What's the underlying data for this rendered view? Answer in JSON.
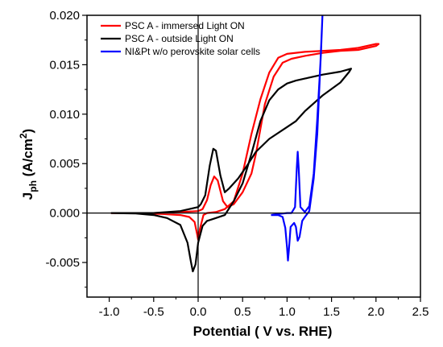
{
  "chart_data": {
    "type": "line",
    "xlabel": "Potential ( V vs. RHE)",
    "ylabel_main": "J",
    "ylabel_sub": "ph",
    "ylabel_unit_open": " (A/cm",
    "ylabel_unit_sup": "2",
    "ylabel_unit_close": ")",
    "xlim": [
      -1.25,
      2.5
    ],
    "ylim": [
      -0.0085,
      0.02
    ],
    "x_ticks": [
      -1.0,
      -0.5,
      0.0,
      0.5,
      1.0,
      1.5,
      2.0,
      2.5
    ],
    "x_tick_labels": [
      "-1.0",
      "-0.5",
      "0.0",
      "0.5",
      "1.0",
      "1.5",
      "2.0",
      "2.5"
    ],
    "y_ticks": [
      -0.005,
      0.0,
      0.005,
      0.01,
      0.015,
      0.02
    ],
    "y_tick_labels": [
      "-0.005",
      "0.000",
      "0.005",
      "0.010",
      "0.015",
      "0.020"
    ],
    "grid": false,
    "legend_position": "top-left",
    "zero_lines": true,
    "series": [
      {
        "name": "PSC A - immersed Light ON",
        "color": "#ff0000",
        "points": [
          [
            -0.98,
            0.0
          ],
          [
            -0.8,
            0.0
          ],
          [
            -0.6,
            -5e-05
          ],
          [
            -0.4,
            -0.0001
          ],
          [
            -0.2,
            -0.0002
          ],
          [
            -0.1,
            -0.0004
          ],
          [
            -0.04,
            -0.0009
          ],
          [
            -0.01,
            -0.0022
          ],
          [
            0.0,
            -0.0027
          ],
          [
            0.02,
            -0.0016
          ],
          [
            0.06,
            -0.0002
          ],
          [
            0.1,
            0.0
          ],
          [
            0.2,
            0.0001
          ],
          [
            0.3,
            0.0004
          ],
          [
            0.4,
            0.0012
          ],
          [
            0.5,
            0.004
          ],
          [
            0.6,
            0.008
          ],
          [
            0.7,
            0.0115
          ],
          [
            0.8,
            0.0142
          ],
          [
            0.9,
            0.0157
          ],
          [
            1.0,
            0.0161
          ],
          [
            1.2,
            0.0163
          ],
          [
            1.4,
            0.0164
          ],
          [
            1.6,
            0.0165
          ],
          [
            1.8,
            0.0167
          ],
          [
            2.0,
            0.0171
          ],
          [
            2.03,
            0.0171
          ],
          [
            2.0,
            0.0169
          ],
          [
            1.8,
            0.0165
          ],
          [
            1.6,
            0.0164
          ],
          [
            1.4,
            0.0162
          ],
          [
            1.2,
            0.0159
          ],
          [
            1.05,
            0.0156
          ],
          [
            0.95,
            0.0152
          ],
          [
            0.85,
            0.0138
          ],
          [
            0.75,
            0.011
          ],
          [
            0.7,
            0.0085
          ],
          [
            0.65,
            0.006
          ],
          [
            0.6,
            0.004
          ],
          [
            0.5,
            0.0021
          ],
          [
            0.4,
            0.0009
          ],
          [
            0.33,
            0.0006
          ],
          [
            0.28,
            0.0012
          ],
          [
            0.22,
            0.0033
          ],
          [
            0.18,
            0.0037
          ],
          [
            0.14,
            0.0028
          ],
          [
            0.1,
            0.0013
          ],
          [
            0.05,
            0.0004
          ],
          [
            0.0,
            0.0002
          ],
          [
            -0.2,
            0.0001
          ],
          [
            -0.5,
            0.0
          ],
          [
            -0.98,
            0.0
          ]
        ]
      },
      {
        "name": "PSC A - outside Light ON",
        "color": "#000000",
        "points": [
          [
            -0.98,
            0.0
          ],
          [
            -0.7,
            -5e-05
          ],
          [
            -0.5,
            -0.0002
          ],
          [
            -0.35,
            -0.0005
          ],
          [
            -0.2,
            -0.0012
          ],
          [
            -0.12,
            -0.003
          ],
          [
            -0.08,
            -0.005
          ],
          [
            -0.06,
            -0.0059
          ],
          [
            -0.03,
            -0.0052
          ],
          [
            0.0,
            -0.003
          ],
          [
            0.05,
            -0.0013
          ],
          [
            0.1,
            -0.0008
          ],
          [
            0.2,
            -0.0005
          ],
          [
            0.3,
            -0.0002
          ],
          [
            0.4,
            0.0012
          ],
          [
            0.5,
            0.003
          ],
          [
            0.6,
            0.006
          ],
          [
            0.7,
            0.0093
          ],
          [
            0.8,
            0.0114
          ],
          [
            0.9,
            0.0125
          ],
          [
            1.0,
            0.0131
          ],
          [
            1.1,
            0.0134
          ],
          [
            1.2,
            0.0136
          ],
          [
            1.4,
            0.014
          ],
          [
            1.6,
            0.0143
          ],
          [
            1.72,
            0.0146
          ],
          [
            1.7,
            0.0143
          ],
          [
            1.6,
            0.0132
          ],
          [
            1.4,
            0.0119
          ],
          [
            1.2,
            0.0103
          ],
          [
            1.1,
            0.0093
          ],
          [
            1.0,
            0.0087
          ],
          [
            0.8,
            0.0075
          ],
          [
            0.65,
            0.0062
          ],
          [
            0.55,
            0.0048
          ],
          [
            0.45,
            0.0035
          ],
          [
            0.35,
            0.0025
          ],
          [
            0.3,
            0.0021
          ],
          [
            0.25,
            0.0038
          ],
          [
            0.2,
            0.0063
          ],
          [
            0.17,
            0.0065
          ],
          [
            0.13,
            0.0048
          ],
          [
            0.08,
            0.0018
          ],
          [
            0.03,
            0.0009
          ],
          [
            0.0,
            0.0006
          ],
          [
            -0.2,
            0.0002
          ],
          [
            -0.5,
            0.0
          ],
          [
            -0.98,
            0.0
          ]
        ]
      },
      {
        "name": "NI&Pt w/o perovskite solar cells",
        "color": "#0000ff",
        "points": [
          [
            0.82,
            -0.0002
          ],
          [
            0.9,
            -0.0002
          ],
          [
            0.95,
            -0.0004
          ],
          [
            0.98,
            -0.0015
          ],
          [
            1.0,
            -0.0035
          ],
          [
            1.01,
            -0.0048
          ],
          [
            1.02,
            -0.0038
          ],
          [
            1.04,
            -0.0014
          ],
          [
            1.08,
            -0.001
          ],
          [
            1.1,
            -0.0014
          ],
          [
            1.12,
            -0.0028
          ],
          [
            1.14,
            -0.0024
          ],
          [
            1.17,
            -0.0008
          ],
          [
            1.2,
            -0.0004
          ],
          [
            1.25,
            0.0002
          ],
          [
            1.3,
            0.0035
          ],
          [
            1.34,
            0.008
          ],
          [
            1.37,
            0.014
          ],
          [
            1.4,
            0.0205
          ],
          [
            1.38,
            0.016
          ],
          [
            1.34,
            0.0095
          ],
          [
            1.3,
            0.004
          ],
          [
            1.25,
            0.0007
          ],
          [
            1.2,
            0.0001
          ],
          [
            1.15,
            0.0006
          ],
          [
            1.13,
            0.0046
          ],
          [
            1.12,
            0.0062
          ],
          [
            1.11,
            0.0046
          ],
          [
            1.09,
            0.0006
          ],
          [
            1.05,
            0.0
          ],
          [
            1.0,
            0.0
          ],
          [
            0.9,
            -0.0001
          ],
          [
            0.82,
            -0.0002
          ]
        ]
      }
    ]
  }
}
